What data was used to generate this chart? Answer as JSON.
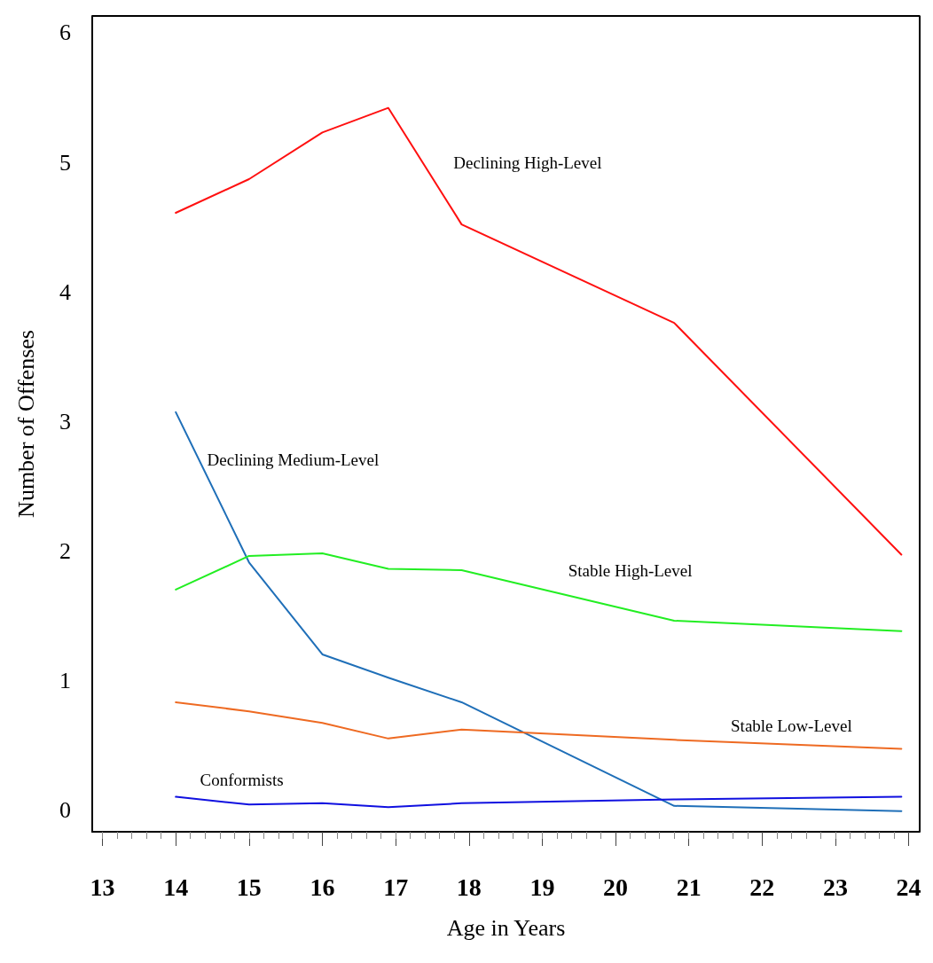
{
  "chart_data": {
    "type": "line",
    "xlabel": "Age in Years",
    "ylabel": "Number of Offenses",
    "xlim": [
      12.86,
      24.15
    ],
    "xticks": [
      13,
      14,
      15,
      16,
      17,
      18,
      19,
      20,
      21,
      22,
      23,
      24
    ],
    "ylim": [
      -0.17,
      6.13
    ],
    "yticks": [
      0,
      1,
      2,
      3,
      4,
      5,
      6
    ],
    "x": [
      14,
      15,
      16,
      16.9,
      17.9,
      20.8,
      23.9
    ],
    "grid": false,
    "legend": false,
    "marker": "none",
    "line_style": "solid",
    "series": [
      {
        "name": "Declining High-Level",
        "color": "#ff1010",
        "values": [
          4.61,
          4.87,
          5.23,
          5.42,
          4.52,
          3.76,
          1.97
        ]
      },
      {
        "name": "Declining Medium-Level",
        "color": "#1f6fb8",
        "values": [
          3.07,
          1.91,
          1.2,
          1.02,
          0.83,
          0.03,
          -0.01
        ]
      },
      {
        "name": "Stable High-Level",
        "color": "#22ee22",
        "values": [
          1.7,
          1.96,
          1.98,
          1.86,
          1.85,
          1.46,
          1.38
        ]
      },
      {
        "name": "Stable Low-Level",
        "color": "#ee6a22",
        "values": [
          0.83,
          0.76,
          0.67,
          0.55,
          0.62,
          0.54,
          0.47
        ]
      },
      {
        "name": "Conformists",
        "color": "#1010e0",
        "values": [
          0.1,
          0.04,
          0.05,
          0.02,
          0.05,
          0.08,
          0.1
        ]
      }
    ]
  }
}
